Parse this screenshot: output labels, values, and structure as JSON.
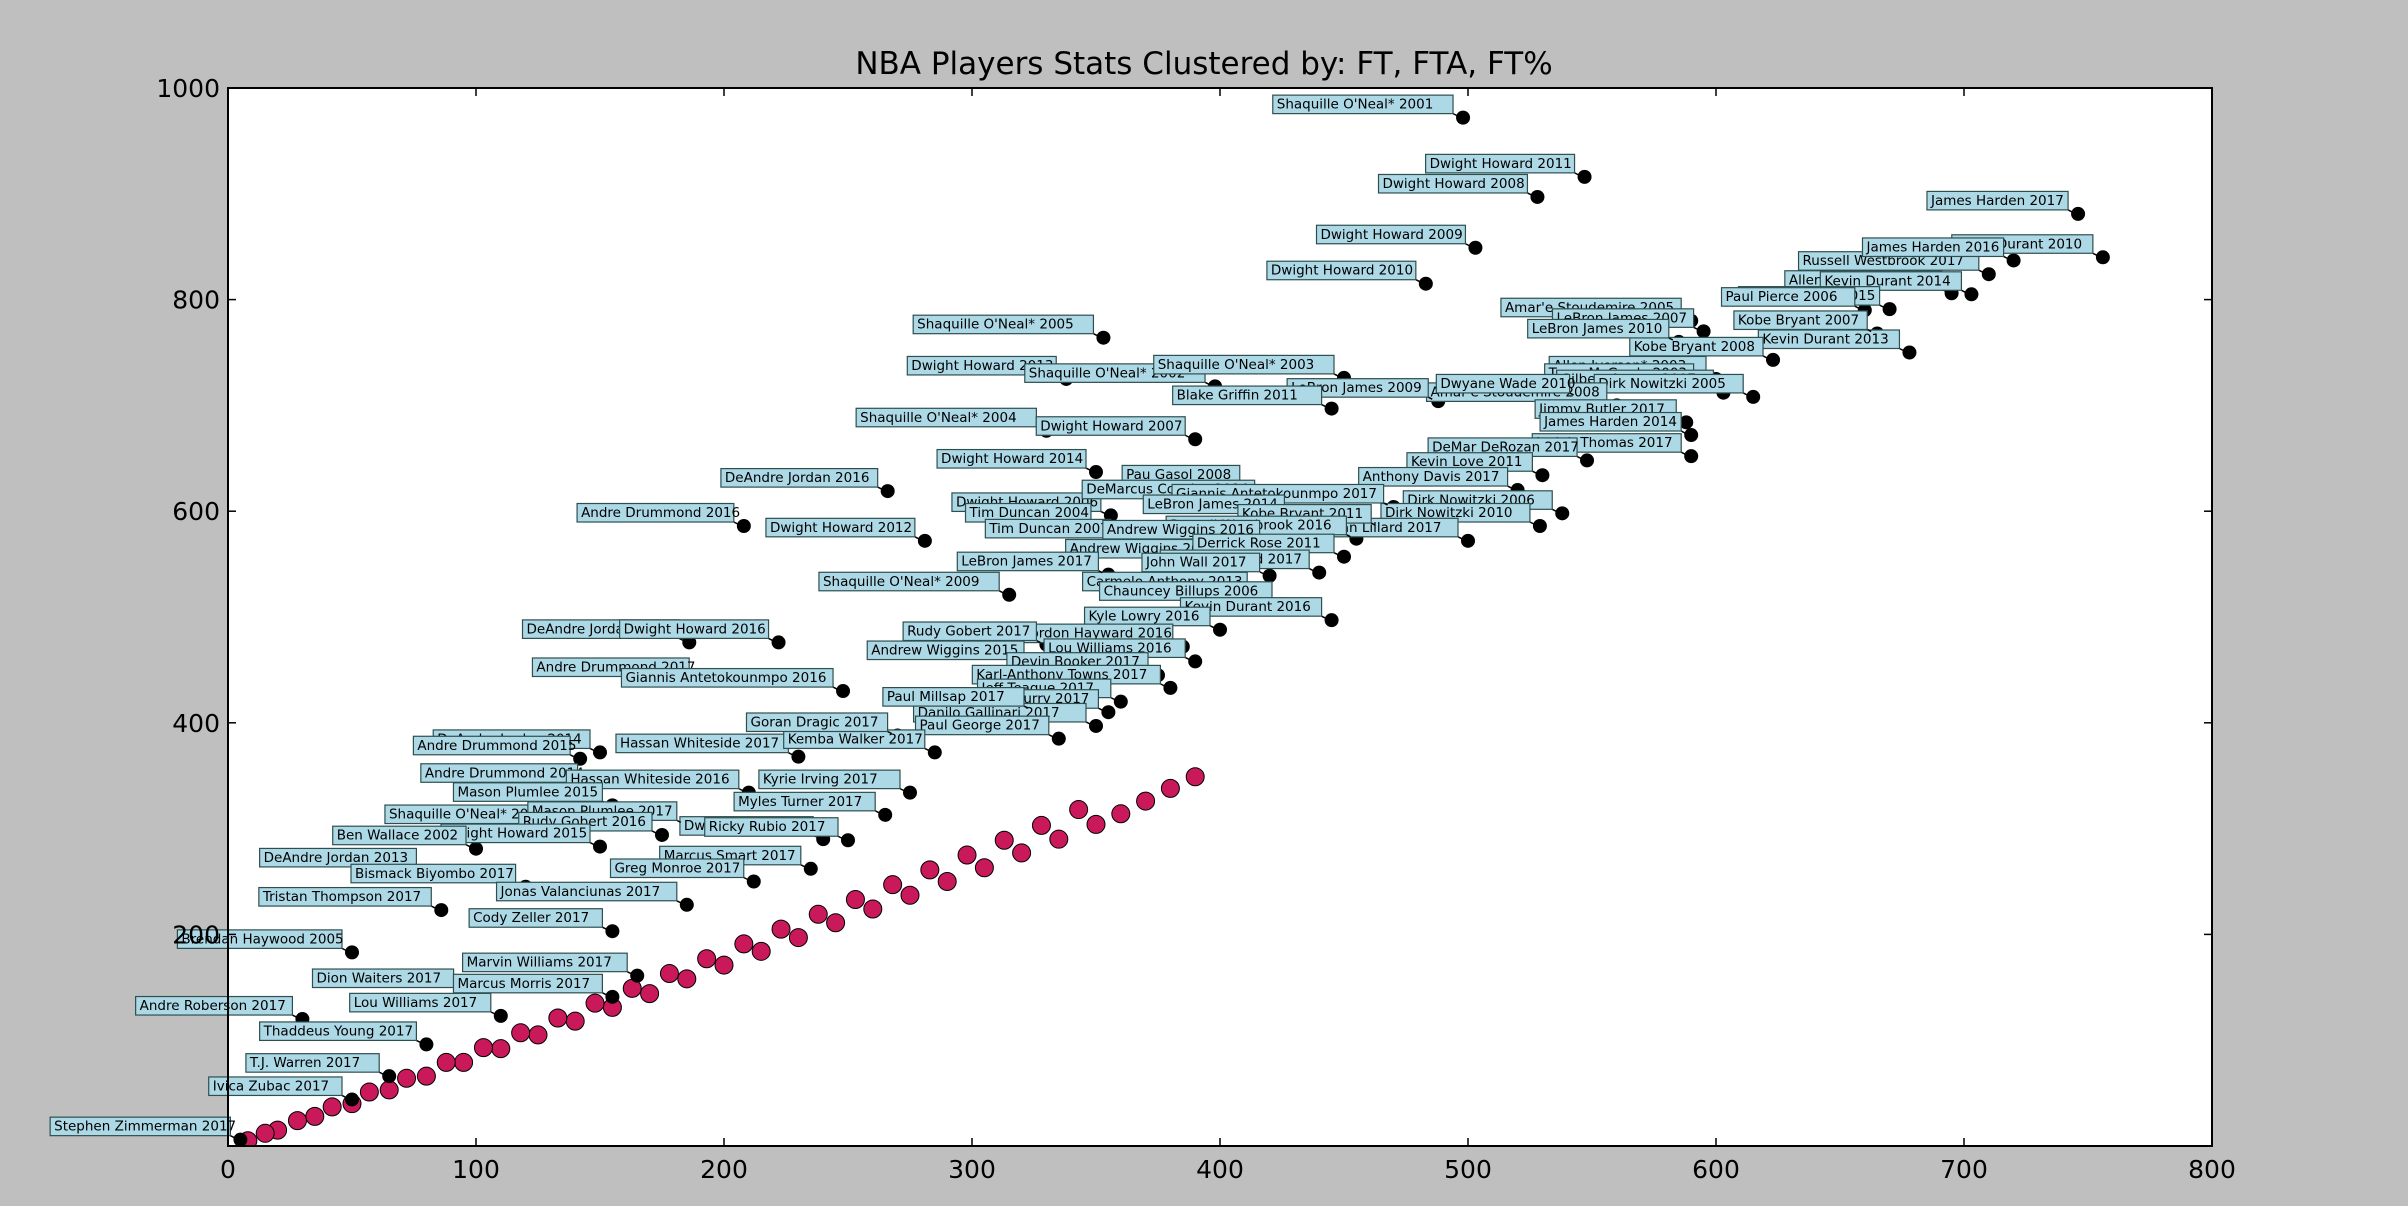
{
  "chart_data": {
    "type": "scatter",
    "title": "NBA Players Stats Clustered by: FT, FTA, FT%",
    "xlabel": "",
    "ylabel": "",
    "xlim": [
      0,
      800
    ],
    "ylim": [
      0,
      1000
    ],
    "xticks": [
      "0",
      "100",
      "200",
      "300",
      "400",
      "500",
      "600",
      "700",
      "800"
    ],
    "yticks": [
      "200",
      "400",
      "600",
      "800",
      "1000"
    ],
    "grid": false,
    "legend": "none",
    "colors": {
      "background": "#bfbfbf",
      "plot_area": "#ffffff",
      "cluster_dense": "#c9195a",
      "cluster_outlier": "#000000",
      "label_box": "#add8e6",
      "label_border": "#2f4f4f"
    },
    "series": [
      {
        "color": "#000000",
        "points": [
          {
            "label": "Shaquille O'Neal* 2001",
            "x": 498,
            "y": 972
          },
          {
            "label": "Dwight Howard 2011",
            "x": 547,
            "y": 916
          },
          {
            "label": "Dwight Howard 2008",
            "x": 528,
            "y": 897
          },
          {
            "label": "Dwight Howard 2009",
            "x": 503,
            "y": 849
          },
          {
            "label": "Dwight Howard 2010",
            "x": 483,
            "y": 815
          },
          {
            "label": "James Harden 2017",
            "x": 746,
            "y": 881
          },
          {
            "label": "Kevin Durant 2010",
            "x": 756,
            "y": 840
          },
          {
            "label": "Russell Westbrook 2017",
            "x": 710,
            "y": 824
          },
          {
            "label": "Allen Iverson* 2005",
            "x": 695,
            "y": 806
          },
          {
            "label": "Kevin Durant 2014",
            "x": 703,
            "y": 805
          },
          {
            "label": "James Harden 2016",
            "x": 720,
            "y": 837
          },
          {
            "label": "James Harden 2015",
            "x": 670,
            "y": 791
          },
          {
            "label": "Kevin Durant 2013",
            "x": 678,
            "y": 750
          },
          {
            "label": "Kobe Bryant 2007",
            "x": 665,
            "y": 768
          },
          {
            "label": "Kobe Bryant 2008",
            "x": 623,
            "y": 743
          },
          {
            "label": "Paul Pierce 2006",
            "x": 660,
            "y": 790
          },
          {
            "label": "Amar'e Stoudemire 2005",
            "x": 590,
            "y": 780
          },
          {
            "label": "LeBron James 2007",
            "x": 595,
            "y": 770
          },
          {
            "label": "LeBron James 2010",
            "x": 585,
            "y": 760
          },
          {
            "label": "Allen Iverson* 2003",
            "x": 600,
            "y": 725
          },
          {
            "label": "Tracy McGrady 2003",
            "x": 595,
            "y": 718
          },
          {
            "label": "Gilbert Arenas 2007",
            "x": 603,
            "y": 712
          },
          {
            "label": "Dirk Nowitzki 2005",
            "x": 615,
            "y": 708
          },
          {
            "label": "Amar'e Stoudemire 2008",
            "x": 560,
            "y": 700
          },
          {
            "label": "Dwyane Wade 2010",
            "x": 545,
            "y": 708
          },
          {
            "label": "Jimmy Butler 2017",
            "x": 588,
            "y": 684
          },
          {
            "label": "James Harden 2014",
            "x": 590,
            "y": 672
          },
          {
            "label": "Isaiah Thomas 2017",
            "x": 590,
            "y": 652
          },
          {
            "label": "DeMar DeRozan 2017",
            "x": 548,
            "y": 648
          },
          {
            "label": "Kevin Love 2011",
            "x": 530,
            "y": 634
          },
          {
            "label": "Dirk Nowitzki 2006",
            "x": 538,
            "y": 598
          },
          {
            "label": "Dirk Nowitzki 2010",
            "x": 529,
            "y": 586
          },
          {
            "label": "Anthony Davis 2017",
            "x": 520,
            "y": 620
          },
          {
            "label": "Damian Lillard 2017",
            "x": 500,
            "y": 572
          },
          {
            "label": "Shaquille O'Neal* 2005",
            "x": 353,
            "y": 764
          },
          {
            "label": "Dwight Howard 2013",
            "x": 338,
            "y": 725
          },
          {
            "label": "Shaquille O'Neal* 2002",
            "x": 398,
            "y": 718
          },
          {
            "label": "Shaquille O'Neal* 2003",
            "x": 450,
            "y": 726
          },
          {
            "label": "LeBron James 2009",
            "x": 488,
            "y": 704
          },
          {
            "label": "Blake Griffin 2011",
            "x": 445,
            "y": 697
          },
          {
            "label": "Shaquille O'Neal* 2004",
            "x": 330,
            "y": 676
          },
          {
            "label": "Dwight Howard 2007",
            "x": 390,
            "y": 668
          },
          {
            "label": "Dwight Howard 2014",
            "x": 350,
            "y": 637
          },
          {
            "label": "DeAndre Jordan 2016",
            "x": 266,
            "y": 619
          },
          {
            "label": "Andre Drummond 2016",
            "x": 208,
            "y": 586
          },
          {
            "label": "Dwight Howard 2012",
            "x": 281,
            "y": 572
          },
          {
            "label": "Dwight Howard 2006",
            "x": 356,
            "y": 596
          },
          {
            "label": "Tim Duncan 2004",
            "x": 352,
            "y": 586
          },
          {
            "label": "Tim Duncan 2007",
            "x": 360,
            "y": 571
          },
          {
            "label": "Pau Gasol 2008",
            "x": 412,
            "y": 622
          },
          {
            "label": "DeMarcus Cousins 2014",
            "x": 418,
            "y": 608
          },
          {
            "label": "Giannis Antetokounmpo 2017",
            "x": 470,
            "y": 604
          },
          {
            "label": "LeBron James 2014",
            "x": 430,
            "y": 594
          },
          {
            "label": "Kobe Bryant 2011",
            "x": 465,
            "y": 585
          },
          {
            "label": "Russell Westbrook 2016",
            "x": 455,
            "y": 574
          },
          {
            "label": "Andrew Wiggins 2016",
            "x": 420,
            "y": 570
          },
          {
            "label": "Andrew Wiggins 2017",
            "x": 405,
            "y": 552
          },
          {
            "label": "Derrick Rose 2011",
            "x": 450,
            "y": 557
          },
          {
            "label": "Kawhi Leonard 2017",
            "x": 440,
            "y": 542
          },
          {
            "label": "John Wall 2017",
            "x": 420,
            "y": 539
          },
          {
            "label": "Carmelo Anthony 2013",
            "x": 415,
            "y": 521
          },
          {
            "label": "Chauncey Billups 2006",
            "x": 425,
            "y": 512
          },
          {
            "label": "Kevin Durant 2016",
            "x": 445,
            "y": 497
          },
          {
            "label": "LeBron James 2017",
            "x": 355,
            "y": 540
          },
          {
            "label": "Shaquille O'Neal* 2009",
            "x": 315,
            "y": 521
          },
          {
            "label": "Kyle Lowry 2016",
            "x": 400,
            "y": 488
          },
          {
            "label": "Gordon Hayward 2016",
            "x": 385,
            "y": 472
          },
          {
            "label": "Rudy Gobert 2017",
            "x": 330,
            "y": 474
          },
          {
            "label": "Lou Williams 2016",
            "x": 390,
            "y": 458
          },
          {
            "label": "Andrew Wiggins 2015",
            "x": 325,
            "y": 456
          },
          {
            "label": "Devin Booker 2017",
            "x": 375,
            "y": 445
          },
          {
            "label": "Karl-Anthony Towns 2017",
            "x": 380,
            "y": 433
          },
          {
            "label": "Jeff Teague 2017",
            "x": 360,
            "y": 420
          },
          {
            "label": "Stephen Curry 2017",
            "x": 355,
            "y": 410
          },
          {
            "label": "Danilo Gallinari 2017",
            "x": 350,
            "y": 397
          },
          {
            "label": "Paul George 2017",
            "x": 335,
            "y": 385
          },
          {
            "label": "Paul Millsap 2017",
            "x": 325,
            "y": 412
          },
          {
            "label": "DeAndre Jordan 2015",
            "x": 186,
            "y": 476
          },
          {
            "label": "Dwight Howard 2016",
            "x": 222,
            "y": 476
          },
          {
            "label": "Andre Drummond 2017",
            "x": 190,
            "y": 440
          },
          {
            "label": "Giannis Antetokounmpo 2016",
            "x": 248,
            "y": 430
          },
          {
            "label": "DeAndre Jordan 2014",
            "x": 150,
            "y": 372
          },
          {
            "label": "Andre Drummond 2015",
            "x": 142,
            "y": 366
          },
          {
            "label": "Hassan Whiteside 2017",
            "x": 230,
            "y": 368
          },
          {
            "label": "Kemba Walker 2017",
            "x": 285,
            "y": 372
          },
          {
            "label": "Goran Dragic 2017",
            "x": 270,
            "y": 388
          },
          {
            "label": "Andre Drummond 2014",
            "x": 145,
            "y": 340
          },
          {
            "label": "Hassan Whiteside 2016",
            "x": 210,
            "y": 334
          },
          {
            "label": "Kyrie Irving 2017",
            "x": 275,
            "y": 334
          },
          {
            "label": "Mason Plumlee 2015",
            "x": 155,
            "y": 322
          },
          {
            "label": "Myles Turner 2017",
            "x": 265,
            "y": 313
          },
          {
            "label": "Shaquille O'Neal* 2010",
            "x": 140,
            "y": 301
          },
          {
            "label": "Dwyane Wade 2017",
            "x": 240,
            "y": 290
          },
          {
            "label": "Ricky Rubio 2017",
            "x": 250,
            "y": 289
          },
          {
            "label": "Mason Plumlee 2017",
            "x": 185,
            "y": 304
          },
          {
            "label": "Rudy Gobert 2016",
            "x": 175,
            "y": 294
          },
          {
            "label": "Dwight Howard 2015",
            "x": 150,
            "y": 283
          },
          {
            "label": "Ben Wallace 2002",
            "x": 100,
            "y": 281
          },
          {
            "label": "DeAndre Jordan 2013",
            "x": 80,
            "y": 260
          },
          {
            "label": "Marcus Smart 2017",
            "x": 235,
            "y": 262
          },
          {
            "label": "Greg Monroe 2017",
            "x": 212,
            "y": 250
          },
          {
            "label": "Bismack Biyombo 2017",
            "x": 120,
            "y": 245
          },
          {
            "label": "Tristan Thompson 2017",
            "x": 86,
            "y": 223
          },
          {
            "label": "Jonas Valanciunas 2017",
            "x": 185,
            "y": 228
          },
          {
            "label": "Cody Zeller 2017",
            "x": 155,
            "y": 203
          },
          {
            "label": "Brendan Haywood 2005",
            "x": 50,
            "y": 183
          },
          {
            "label": "Marvin Williams 2017",
            "x": 165,
            "y": 161
          },
          {
            "label": "Dion Waiters 2017",
            "x": 95,
            "y": 146
          },
          {
            "label": "Lou Williams 2017",
            "x": 110,
            "y": 123
          },
          {
            "label": "Marcus Morris 2017",
            "x": 155,
            "y": 141
          },
          {
            "label": "Thaddeus Young 2017",
            "x": 80,
            "y": 96
          },
          {
            "label": "Andre Roberson 2017",
            "x": 30,
            "y": 120
          },
          {
            "label": "T.J. Warren 2017",
            "x": 65,
            "y": 66
          },
          {
            "label": "Ivica Zubac 2017",
            "x": 50,
            "y": 44
          },
          {
            "label": "Stephen Zimmerman 2017",
            "x": 5,
            "y": 6
          }
        ]
      },
      {
        "color": "#c9195a",
        "points": [
          {
            "x": 8,
            "y": 5
          },
          {
            "x": 20,
            "y": 15
          },
          {
            "x": 35,
            "y": 28
          },
          {
            "x": 50,
            "y": 40
          },
          {
            "x": 65,
            "y": 53
          },
          {
            "x": 80,
            "y": 66
          },
          {
            "x": 95,
            "y": 79
          },
          {
            "x": 110,
            "y": 92
          },
          {
            "x": 125,
            "y": 105
          },
          {
            "x": 140,
            "y": 118
          },
          {
            "x": 155,
            "y": 131
          },
          {
            "x": 170,
            "y": 144
          },
          {
            "x": 185,
            "y": 158
          },
          {
            "x": 200,
            "y": 171
          },
          {
            "x": 215,
            "y": 184
          },
          {
            "x": 230,
            "y": 197
          },
          {
            "x": 245,
            "y": 211
          },
          {
            "x": 260,
            "y": 224
          },
          {
            "x": 275,
            "y": 237
          },
          {
            "x": 290,
            "y": 250
          },
          {
            "x": 305,
            "y": 263
          },
          {
            "x": 320,
            "y": 277
          },
          {
            "x": 335,
            "y": 290
          },
          {
            "x": 350,
            "y": 304
          },
          {
            "x": 360,
            "y": 314
          },
          {
            "x": 370,
            "y": 326
          },
          {
            "x": 380,
            "y": 338
          },
          {
            "x": 390,
            "y": 349
          },
          {
            "x": 15,
            "y": 12
          },
          {
            "x": 28,
            "y": 24
          },
          {
            "x": 42,
            "y": 37
          },
          {
            "x": 57,
            "y": 51
          },
          {
            "x": 72,
            "y": 64
          },
          {
            "x": 88,
            "y": 79
          },
          {
            "x": 103,
            "y": 93
          },
          {
            "x": 118,
            "y": 107
          },
          {
            "x": 133,
            "y": 121
          },
          {
            "x": 148,
            "y": 135
          },
          {
            "x": 163,
            "y": 149
          },
          {
            "x": 178,
            "y": 163
          },
          {
            "x": 193,
            "y": 177
          },
          {
            "x": 208,
            "y": 191
          },
          {
            "x": 223,
            "y": 205
          },
          {
            "x": 238,
            "y": 219
          },
          {
            "x": 253,
            "y": 233
          },
          {
            "x": 268,
            "y": 247
          },
          {
            "x": 283,
            "y": 261
          },
          {
            "x": 298,
            "y": 275
          },
          {
            "x": 313,
            "y": 289
          },
          {
            "x": 328,
            "y": 303
          },
          {
            "x": 343,
            "y": 318
          }
        ]
      }
    ]
  }
}
